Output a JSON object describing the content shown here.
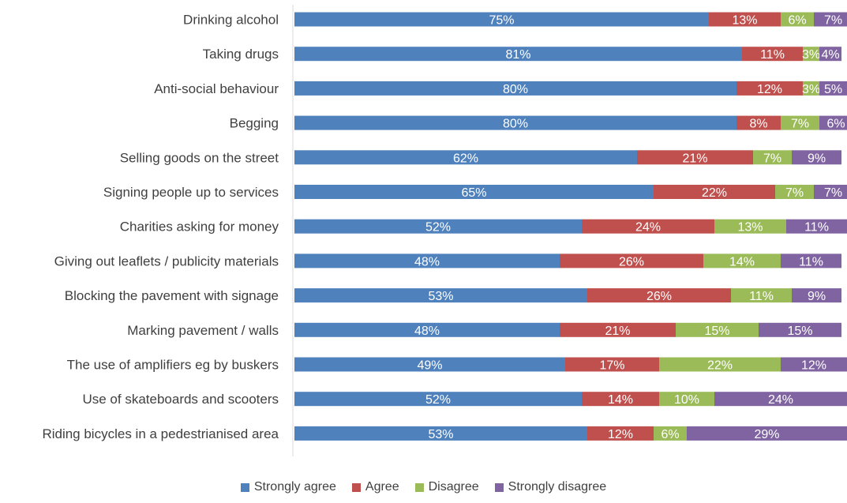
{
  "chart_data": {
    "type": "bar",
    "orientation": "horizontal",
    "stacked": true,
    "title": "",
    "xlabel": "",
    "ylabel": "",
    "xlim": [
      0,
      100
    ],
    "legend_position": "bottom",
    "grid": false,
    "categories": [
      "Drinking alcohol",
      "Taking drugs",
      "Anti-social behaviour",
      "Begging",
      "Selling goods on the street",
      "Signing people up to services",
      "Charities asking for money",
      "Giving out leaflets / publicity materials",
      "Blocking the pavement with signage",
      "Marking pavement / walls",
      "The use of amplifiers eg by buskers",
      "Use of skateboards and scooters",
      "Riding bicycles in a pedestrianised area"
    ],
    "series": [
      {
        "name": "Strongly agree",
        "color": "#4f81bd",
        "values": [
          75,
          81,
          80,
          80,
          62,
          65,
          52,
          48,
          53,
          48,
          49,
          52,
          53
        ],
        "labels": [
          "75%",
          "81%",
          "80%",
          "80%",
          "62%",
          "65%",
          "52%",
          "48%",
          "53%",
          "48%",
          "49%",
          "52%",
          "53%"
        ]
      },
      {
        "name": "Agree",
        "color": "#c0504d",
        "values": [
          13,
          11,
          12,
          8,
          21,
          22,
          24,
          26,
          26,
          21,
          17,
          14,
          12
        ],
        "labels": [
          "13%",
          "11%",
          "12%",
          "8%",
          "21%",
          "22%",
          "24%",
          "26%",
          "26%",
          "21%",
          "17%",
          "14%",
          "12%"
        ]
      },
      {
        "name": "Disagree",
        "color": "#9bbb59",
        "values": [
          6,
          3,
          3,
          7,
          7,
          7,
          13,
          14,
          11,
          15,
          22,
          10,
          6
        ],
        "labels": [
          "6%",
          "3%",
          "3%",
          "7%",
          "7%",
          "7%",
          "13%",
          "14%",
          "11%",
          "15%",
          "22%",
          "10%",
          "6%"
        ]
      },
      {
        "name": "Strongly disagree",
        "color": "#8064a2",
        "values": [
          7,
          4,
          5,
          6,
          9,
          7,
          11,
          11,
          9,
          15,
          12,
          24,
          29
        ],
        "labels": [
          "7%",
          "4%",
          "5%",
          "6%",
          "9%",
          "7%",
          "11%",
          "11%",
          "9%",
          "15%",
          "12%",
          "24%",
          "29%"
        ]
      }
    ]
  }
}
